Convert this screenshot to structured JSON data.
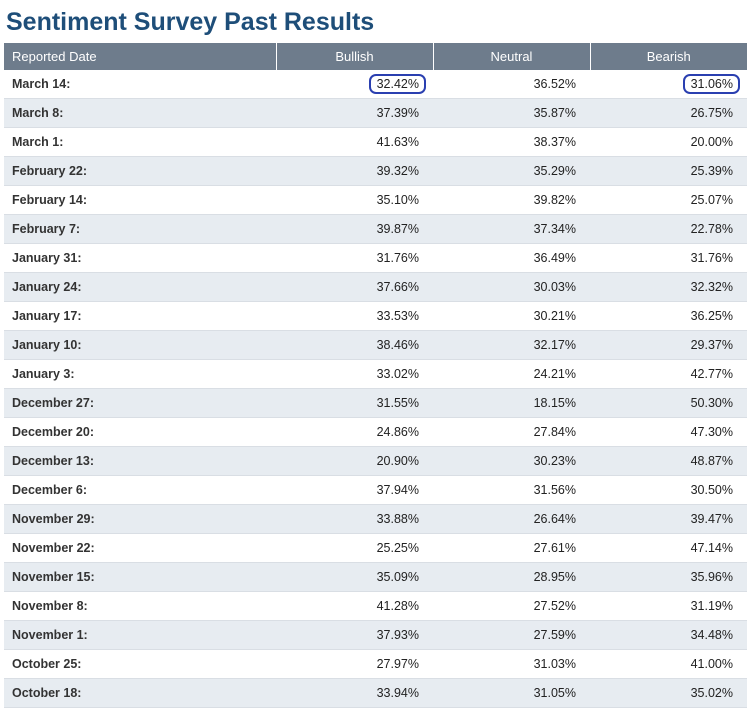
{
  "title": "Sentiment Survey Past Results",
  "columns": [
    "Reported Date",
    "Bullish",
    "Neutral",
    "Bearish"
  ],
  "highlight": {
    "row": 0,
    "cols": [
      1,
      3
    ]
  },
  "colors": {
    "title": "#1e4e79",
    "header_bg": "#6e7c8c",
    "header_text": "#ffffff",
    "row_odd": "#ffffff",
    "row_even": "#e7ecf1",
    "border": "#d9dee4",
    "highlight_border": "#2a3fb0"
  },
  "rows": [
    {
      "date": "March 14:",
      "bullish": "32.42%",
      "neutral": "36.52%",
      "bearish": "31.06%"
    },
    {
      "date": "March 8:",
      "bullish": "37.39%",
      "neutral": "35.87%",
      "bearish": "26.75%"
    },
    {
      "date": "March 1:",
      "bullish": "41.63%",
      "neutral": "38.37%",
      "bearish": "20.00%"
    },
    {
      "date": "February 22:",
      "bullish": "39.32%",
      "neutral": "35.29%",
      "bearish": "25.39%"
    },
    {
      "date": "February 14:",
      "bullish": "35.10%",
      "neutral": "39.82%",
      "bearish": "25.07%"
    },
    {
      "date": "February 7:",
      "bullish": "39.87%",
      "neutral": "37.34%",
      "bearish": "22.78%"
    },
    {
      "date": "January 31:",
      "bullish": "31.76%",
      "neutral": "36.49%",
      "bearish": "31.76%"
    },
    {
      "date": "January 24:",
      "bullish": "37.66%",
      "neutral": "30.03%",
      "bearish": "32.32%"
    },
    {
      "date": "January 17:",
      "bullish": "33.53%",
      "neutral": "30.21%",
      "bearish": "36.25%"
    },
    {
      "date": "January 10:",
      "bullish": "38.46%",
      "neutral": "32.17%",
      "bearish": "29.37%"
    },
    {
      "date": "January 3:",
      "bullish": "33.02%",
      "neutral": "24.21%",
      "bearish": "42.77%"
    },
    {
      "date": "December 27:",
      "bullish": "31.55%",
      "neutral": "18.15%",
      "bearish": "50.30%"
    },
    {
      "date": "December 20:",
      "bullish": "24.86%",
      "neutral": "27.84%",
      "bearish": "47.30%"
    },
    {
      "date": "December 13:",
      "bullish": "20.90%",
      "neutral": "30.23%",
      "bearish": "48.87%"
    },
    {
      "date": "December 6:",
      "bullish": "37.94%",
      "neutral": "31.56%",
      "bearish": "30.50%"
    },
    {
      "date": "November 29:",
      "bullish": "33.88%",
      "neutral": "26.64%",
      "bearish": "39.47%"
    },
    {
      "date": "November 22:",
      "bullish": "25.25%",
      "neutral": "27.61%",
      "bearish": "47.14%"
    },
    {
      "date": "November 15:",
      "bullish": "35.09%",
      "neutral": "28.95%",
      "bearish": "35.96%"
    },
    {
      "date": "November 8:",
      "bullish": "41.28%",
      "neutral": "27.52%",
      "bearish": "31.19%"
    },
    {
      "date": "November 1:",
      "bullish": "37.93%",
      "neutral": "27.59%",
      "bearish": "34.48%"
    },
    {
      "date": "October 25:",
      "bullish": "27.97%",
      "neutral": "31.03%",
      "bearish": "41.00%"
    },
    {
      "date": "October 18:",
      "bullish": "33.94%",
      "neutral": "31.05%",
      "bearish": "35.02%"
    }
  ]
}
